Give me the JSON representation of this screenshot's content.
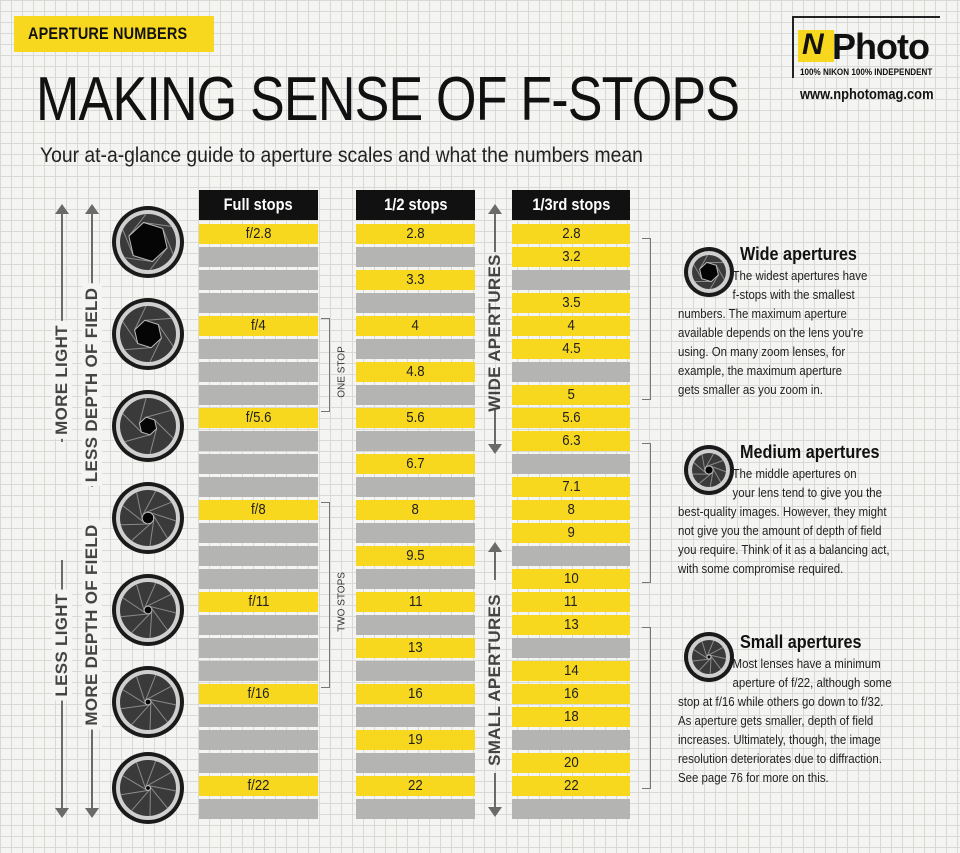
{
  "tag": "APERTURE NUMBERS",
  "logo": {
    "mark": "N",
    "name": "Photo",
    "tagline": "100% NIKON 100% INDEPENDENT",
    "url": "www.nphotomag.com"
  },
  "title": "MAKING SENSE OF F-STOPS",
  "subtitle": "Your at-a-glance guide to aperture scales and what the numbers mean",
  "side_labels": {
    "more_light": "MORE LIGHT",
    "less_dof": "LESS DEPTH OF FIELD",
    "less_light": "LESS LIGHT",
    "more_dof": "MORE DEPTH OF FIELD",
    "wide_apertures": "WIDE APERTURES",
    "small_apertures": "SMALL APERTURES"
  },
  "columns": {
    "full": {
      "header": "Full stops",
      "cells": [
        "f/2.8",
        "",
        "",
        "",
        "f/4",
        "",
        "",
        "",
        "f/5.6",
        "",
        "",
        "",
        "f/8",
        "",
        "",
        "",
        "f/11",
        "",
        "",
        "",
        "f/16",
        "",
        "",
        "",
        "f/22",
        ""
      ]
    },
    "half": {
      "header": "1/2 stops",
      "cells": [
        "2.8",
        "",
        "3.3",
        "",
        "4",
        "",
        "4.8",
        "",
        "5.6",
        "",
        "6.7",
        "",
        "8",
        "",
        "9.5",
        "",
        "11",
        "",
        "13",
        "",
        "16",
        "",
        "19",
        "",
        "22",
        ""
      ]
    },
    "third": {
      "header": "1/3rd stops",
      "cells": [
        "2.8",
        "3.2",
        "",
        "3.5",
        "4",
        "4.5",
        "",
        "5",
        "5.6",
        "6.3",
        "",
        "7.1",
        "8",
        "9",
        "",
        "10",
        "11",
        "13",
        "",
        "14",
        "16",
        "18",
        "",
        "20",
        "22",
        ""
      ]
    }
  },
  "brackets": {
    "one_stop": "ONE STOP",
    "two_stops": "TWO STOPS"
  },
  "sections": [
    {
      "title": "Wide apertures",
      "lines": [
        "The widest apertures have",
        "f-stops with the smallest",
        "numbers. The maximum aperture",
        "available depends on the lens you're",
        "using. On many zoom lenses, for",
        "example, the maximum aperture",
        "gets smaller as you zoom in."
      ]
    },
    {
      "title": "Medium apertures",
      "lines": [
        "The middle apertures on",
        "your lens tend to give you the",
        "best-quality images. However, they might",
        "not give you the amount of depth of field",
        "you require. Think of it as a balancing act,",
        "with some compromise required."
      ]
    },
    {
      "title": "Small apertures",
      "lines": [
        "Most lenses have a minimum",
        "aperture of f/22, although some",
        "stop at f/16 while others go down to f/32.",
        "As aperture gets smaller, depth of field",
        "increases. Ultimately, though, the image",
        "resolution deteriorates due to diffraction.",
        "See page 76 for more on this."
      ]
    }
  ],
  "colors": {
    "accent_yellow": "#f7d81e",
    "cell_grey": "#b4b4b2",
    "header_black": "#111111"
  },
  "icons": [
    "aperture-icon"
  ]
}
